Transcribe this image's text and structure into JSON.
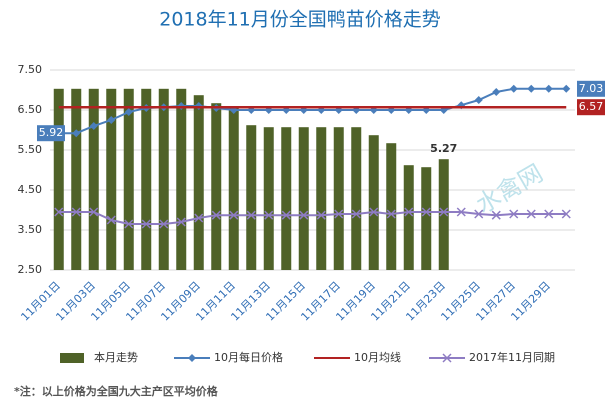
{
  "chart_data": {
    "type": "bar",
    "title": "2018年11月份全国鸭苗价格走势",
    "watermark": "水禽网",
    "note": "*注：以上价格为全国九大主产区平均价格",
    "categories": [
      "11月01日",
      null,
      "11月03日",
      null,
      "11月05日",
      null,
      "11月07日",
      null,
      "11月09日",
      null,
      "11月11日",
      null,
      "11月13日",
      null,
      "11月15日",
      null,
      "11月17日",
      null,
      "11月19日",
      null,
      "11月21日",
      null,
      "11月23日",
      null,
      "11月25日",
      null,
      "11月27日",
      null,
      "11月29日",
      null
    ],
    "ylim": [
      2.5,
      7.5
    ],
    "yticks": [
      {
        "value": 2.5,
        "label": "2.50"
      },
      {
        "value": 3.5,
        "label": "3.50"
      },
      {
        "value": 4.5,
        "label": "4.50"
      },
      {
        "value": 5.5,
        "label": "5.50"
      },
      {
        "value": 6.5,
        "label": "6.50"
      },
      {
        "value": 7.5,
        "label": "7.50"
      }
    ],
    "grid": true,
    "series": [
      {
        "name": "本月走势",
        "type": "bar",
        "color": "#4f6228",
        "values": [
          7.03,
          7.03,
          7.03,
          7.03,
          7.03,
          7.03,
          7.03,
          7.03,
          6.87,
          6.67,
          6.6,
          6.12,
          6.07,
          6.07,
          6.07,
          6.07,
          6.07,
          6.07,
          5.87,
          5.67,
          5.12,
          5.07,
          5.27,
          null,
          null,
          null,
          null,
          null,
          null,
          null
        ],
        "labeled": [
          22
        ]
      },
      {
        "name": "10月每日价格",
        "type": "line",
        "marker": "diamond",
        "color": "#4a7ebb",
        "values": [
          5.92,
          5.92,
          6.1,
          6.25,
          6.45,
          6.55,
          6.57,
          6.6,
          6.6,
          6.55,
          6.5,
          6.5,
          6.5,
          6.5,
          6.5,
          6.5,
          6.5,
          6.5,
          6.5,
          6.5,
          6.5,
          6.5,
          6.5,
          6.62,
          6.75,
          6.95,
          7.03,
          7.03,
          7.03,
          7.03
        ],
        "labeled": [
          0,
          29
        ]
      },
      {
        "name": "10月均线",
        "type": "line",
        "marker": "none",
        "color": "#b22222",
        "values": [
          6.57,
          6.57,
          6.57,
          6.57,
          6.57,
          6.57,
          6.57,
          6.57,
          6.57,
          6.57,
          6.57,
          6.57,
          6.57,
          6.57,
          6.57,
          6.57,
          6.57,
          6.57,
          6.57,
          6.57,
          6.57,
          6.57,
          6.57,
          6.57,
          6.57,
          6.57,
          6.57,
          6.57,
          6.57,
          6.57
        ],
        "labeled": [
          29
        ]
      },
      {
        "name": "2017年11月同期",
        "type": "line",
        "marker": "cross",
        "color": "#8e7cc3",
        "values": [
          3.95,
          3.95,
          3.95,
          3.75,
          3.65,
          3.65,
          3.65,
          3.7,
          3.8,
          3.87,
          3.87,
          3.87,
          3.87,
          3.87,
          3.87,
          3.87,
          3.9,
          3.9,
          3.95,
          3.9,
          3.95,
          3.95,
          3.95,
          3.95,
          3.9,
          3.87,
          3.9,
          3.9,
          3.9,
          3.9
        ]
      }
    ]
  }
}
